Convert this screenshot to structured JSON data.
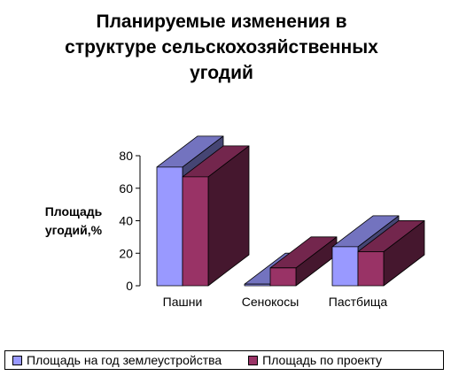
{
  "chart_data": {
    "type": "bar",
    "title_lines": [
      "Планируемые изменения в",
      "структуре сельскохозяйственных",
      "угодий"
    ],
    "ylabel_lines": [
      "Площадь",
      "угодий,%"
    ],
    "categories": [
      "Пашни",
      "Сенокосы",
      "Пастбища"
    ],
    "series": [
      {
        "name": "Площадь на год землеустройства",
        "values": [
          73,
          1,
          24
        ],
        "color": "#9999ff"
      },
      {
        "name": "Площадь по проекту",
        "values": [
          67,
          11,
          21
        ],
        "color": "#993366"
      }
    ],
    "yticks": [
      0,
      20,
      40,
      60,
      80
    ],
    "ylim": [
      0,
      80
    ],
    "legend_position": "bottom",
    "three_d": true
  }
}
